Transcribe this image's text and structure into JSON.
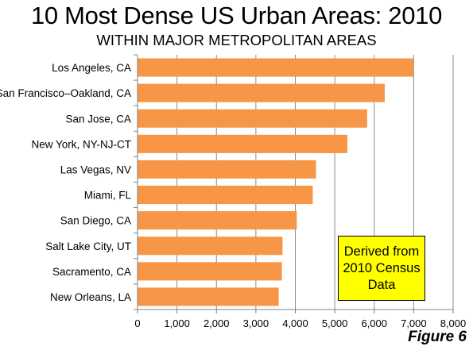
{
  "chart_data": {
    "type": "bar",
    "orientation": "horizontal",
    "title": "10 Most Dense US Urban Areas: 2010",
    "subtitle": "WITHIN MAJOR METROPOLITAN AREAS",
    "categories": [
      "Los Angeles, CA",
      "San Francisco–Oakland, CA",
      "San Jose, CA",
      "New York, NY-NJ-CT",
      "Las Vegas, NV",
      "Miami, FL",
      "San Diego, CA",
      "Salt Lake City, UT",
      "Sacramento, CA",
      "New Orleans, LA"
    ],
    "values": [
      7000,
      6266,
      5820,
      5319,
      4525,
      4442,
      4037,
      3675,
      3660,
      3579
    ],
    "xlim": [
      0,
      8000
    ],
    "xticks": [
      "0",
      "1,000",
      "2,000",
      "3,000",
      "4,000",
      "5,000",
      "6,000",
      "7,000",
      "8,000"
    ],
    "xlabel": "",
    "ylabel": "",
    "grid": true,
    "bar_color": "#f79646",
    "annotation": {
      "lines": [
        "Derived from",
        "2010 Census",
        "Data"
      ],
      "background": "#ffff00"
    }
  },
  "figure_label": "Figure 6"
}
